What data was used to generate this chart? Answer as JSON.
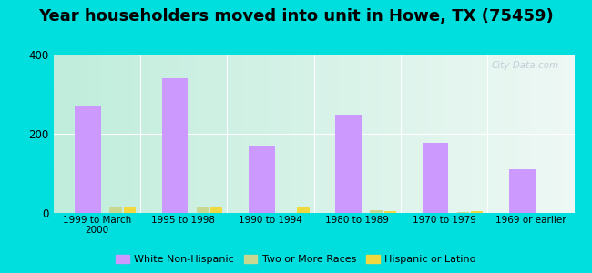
{
  "title": "Year householders moved into unit in Howe, TX (75459)",
  "categories": [
    "1999 to March\n2000",
    "1995 to 1998",
    "1990 to 1994",
    "1980 to 1989",
    "1970 to 1979",
    "1969 or earlier"
  ],
  "series": {
    "White Non-Hispanic": [
      270,
      340,
      170,
      248,
      178,
      110
    ],
    "Two or More Races": [
      13,
      13,
      0,
      8,
      3,
      0
    ],
    "Hispanic or Latino": [
      15,
      17,
      13,
      5,
      4,
      0
    ]
  },
  "colors": {
    "White Non-Hispanic": "#cc99ff",
    "Two or More Races": "#c8d890",
    "Hispanic or Latino": "#f0d840"
  },
  "ylim": [
    0,
    400
  ],
  "yticks": [
    0,
    200,
    400
  ],
  "fig_bg": "#00dede",
  "plot_bg_left": "#c0eddc",
  "plot_bg_right": "#eef8f4",
  "title_fontsize": 13,
  "watermark": "City-Data.com"
}
